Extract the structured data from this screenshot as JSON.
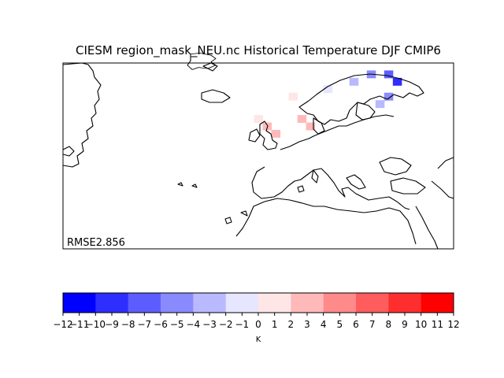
{
  "figure": {
    "title": "CIESM region_mask_NEU.nc Historical Temperature DJF CMIP6",
    "annotation": "RMSE2.856"
  },
  "colorbar": {
    "label": "K",
    "ticks": [
      "−12",
      "−11",
      "−10",
      "−9",
      "−8",
      "−7",
      "−6",
      "−5",
      "−4",
      "−3",
      "−2",
      "−1",
      "0",
      "1",
      "2",
      "3",
      "4",
      "5",
      "6",
      "7",
      "8",
      "9",
      "10",
      "11",
      "12"
    ],
    "colors": [
      "#0000ff",
      "#2e2eff",
      "#5d5dff",
      "#8a8aff",
      "#b9b9ff",
      "#e6e6ff",
      "#ffe6e6",
      "#ffb9b9",
      "#ff8a8a",
      "#ff5d5d",
      "#ff2e2e",
      "#ff0000"
    ]
  },
  "chart_data": {
    "type": "heatmap",
    "title": "CIESM region_mask_NEU.nc Historical Temperature DJF CMIP6",
    "colorbar_label": "K",
    "vmin": -12,
    "vmax": 12,
    "annotation": "RMSE2.856",
    "cells": [
      {
        "lon": 0,
        "lat": 57,
        "value": 1.5
      },
      {
        "lon": 2,
        "lat": 55,
        "value": 3.0
      },
      {
        "lon": 4,
        "lat": 53,
        "value": 2.0
      },
      {
        "lon": 8,
        "lat": 63,
        "value": 1.0
      },
      {
        "lon": 10,
        "lat": 57,
        "value": 3.0
      },
      {
        "lon": 12,
        "lat": 55,
        "value": 2.5
      },
      {
        "lon": 16,
        "lat": 65,
        "value": -1.0
      },
      {
        "lon": 22,
        "lat": 67,
        "value": -3.0
      },
      {
        "lon": 26,
        "lat": 69,
        "value": -6.0
      },
      {
        "lon": 30,
        "lat": 69,
        "value": -8.0
      },
      {
        "lon": 32,
        "lat": 67,
        "value": -9.0
      },
      {
        "lon": 30,
        "lat": 63,
        "value": -5.0
      },
      {
        "lon": 28,
        "lat": 61,
        "value": -3.0
      }
    ]
  }
}
